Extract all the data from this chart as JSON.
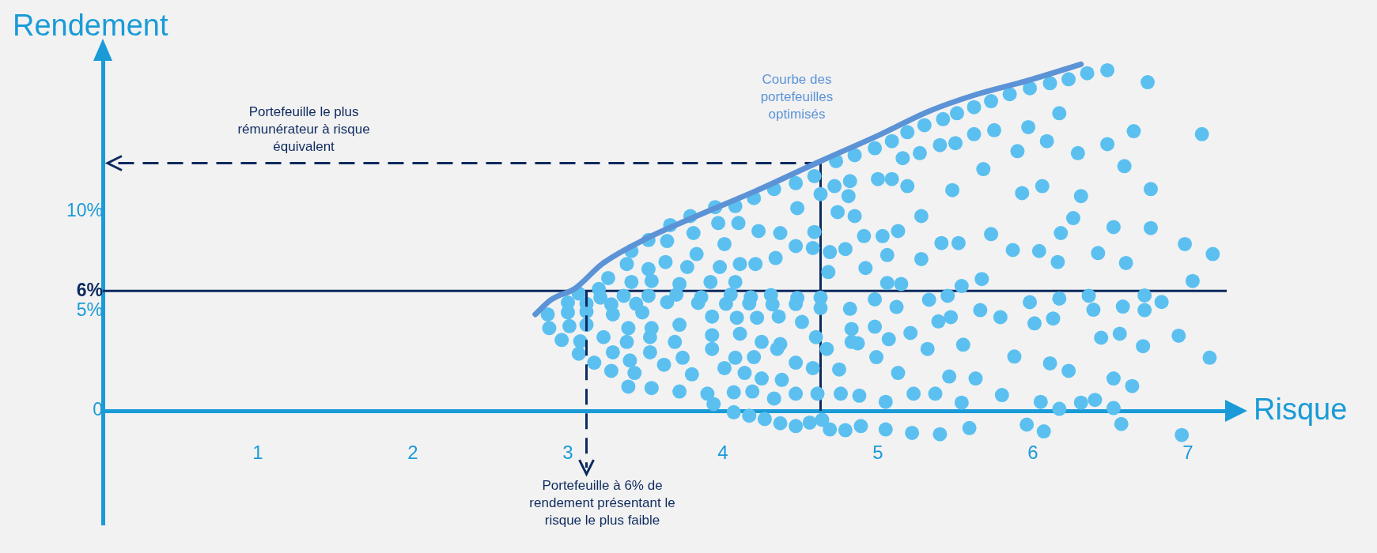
{
  "chart_data": {
    "type": "scatter",
    "xlabel": "Risque",
    "ylabel": "Rendement",
    "xlim": [
      0,
      7.25
    ],
    "ylim": [
      -5.7,
      17.6
    ],
    "xticks": [
      1,
      2,
      3,
      4,
      5,
      6,
      7
    ],
    "yticks": [
      0,
      {
        "value": 5,
        "label": "5%"
      },
      {
        "value": 6,
        "label": "6%"
      },
      {
        "value": 10,
        "label": "10%"
      }
    ],
    "series": [
      {
        "color": "#5bc0f0",
        "x": [
          6.35,
          6.48,
          6.74,
          6.23,
          6.11,
          5.98,
          5.85,
          5.73,
          5.62,
          5.51,
          5.42,
          5.3,
          5.19,
          5.09,
          4.98,
          4.85,
          4.73,
          6.17,
          5.97,
          7.09,
          6.65,
          6.48,
          5.75,
          5.62,
          5.5,
          5.4,
          5.27,
          5.16,
          6.09,
          6.29,
          5.9,
          5.68,
          6.59,
          6.76,
          6.31,
          6.06,
          5.93,
          5.48,
          5.19,
          5.09,
          5.0,
          4.82,
          4.72,
          4.63,
          4.59,
          4.47,
          4.33,
          4.2,
          4.08,
          4.81,
          6.26,
          6.18,
          6.52,
          6.76,
          6.98,
          7.16,
          7.03,
          5.87,
          6.04,
          6.16,
          6.42,
          6.6,
          5.73,
          5.67,
          5.54,
          5.41,
          5.52,
          5.28,
          5.28,
          5.13,
          5.06,
          5.15,
          5.06,
          5.03,
          4.91,
          4.85,
          4.74,
          4.69,
          4.79,
          4.92,
          4.68,
          4.59,
          4.58,
          4.47,
          4.34,
          4.48,
          4.37,
          4.23,
          4.1,
          4.21,
          3.97,
          3.81,
          3.64,
          3.83,
          4.01,
          4.11,
          3.98,
          3.77,
          3.63,
          3.52,
          3.38,
          3.26,
          3.41,
          3.2,
          3.54,
          3.72,
          3.92,
          4.08,
          3.95,
          3.79,
          3.66,
          3.52,
          3.41,
          3.07,
          3.21,
          3.36,
          3.52,
          3.7,
          3.86,
          4.05,
          4.18,
          4.31,
          4.48,
          4.63,
          4.98,
          5.12,
          5.33,
          5.45,
          6.36,
          6.72,
          6.83,
          5.98,
          6.17,
          6.58,
          6.72,
          5.66,
          3.0,
          3.12,
          3.28,
          3.44,
          3.64,
          3.84,
          4.02,
          4.17,
          4.32,
          4.47,
          4.63,
          4.82,
          2.87,
          3.0,
          3.12,
          2.88,
          3.01,
          3.12,
          3.29,
          3.48,
          3.39,
          3.54,
          3.72,
          3.93,
          4.09,
          4.22,
          4.36,
          4.51,
          2.96,
          3.08,
          3.23,
          3.38,
          3.53,
          3.69,
          3.93,
          4.11,
          4.25,
          4.37,
          4.6,
          4.83,
          4.98,
          4.83,
          5.07,
          5.21,
          5.39,
          5.47,
          5.79,
          6.01,
          6.13,
          6.39,
          6.44,
          6.56,
          6.94,
          6.71,
          5.55,
          5.32,
          4.99,
          4.87,
          4.67,
          4.58,
          4.75,
          3.07,
          3.17,
          3.29,
          3.4,
          3.53,
          3.74,
          3.93,
          4.08,
          4.2,
          4.35,
          4.47,
          3.28,
          3.43,
          3.62,
          3.8,
          4.01,
          4.14,
          4.25,
          4.38,
          5.13,
          5.46,
          5.63,
          5.88,
          6.11,
          6.23,
          6.52,
          6.64,
          7.14,
          3.39,
          3.54,
          3.72,
          3.9,
          4.07,
          4.19,
          4.33,
          4.47,
          4.61,
          4.76,
          4.88,
          5.05,
          5.23,
          5.37,
          5.54,
          5.8,
          6.05,
          6.31,
          6.4,
          6.52,
          6.17,
          3.94,
          4.07,
          4.17,
          4.27,
          4.37,
          4.47,
          4.56,
          4.64,
          4.69,
          4.79,
          4.89,
          5.05,
          5.22,
          5.4,
          5.59,
          5.96,
          6.07,
          6.57,
          6.96
        ],
        "values": [
          16.9,
          17.05,
          16.45,
          16.6,
          16.4,
          16.15,
          15.85,
          15.5,
          15.2,
          14.9,
          14.6,
          14.3,
          13.95,
          13.5,
          13.15,
          12.8,
          12.5,
          14.9,
          14.2,
          13.85,
          14.0,
          13.35,
          14.05,
          13.85,
          13.4,
          13.3,
          12.9,
          12.65,
          13.5,
          12.9,
          13.0,
          12.1,
          12.25,
          11.1,
          10.75,
          11.25,
          10.9,
          11.05,
          11.25,
          11.6,
          11.6,
          11.5,
          11.25,
          10.85,
          11.75,
          11.4,
          11.1,
          10.65,
          10.25,
          10.75,
          9.65,
          8.9,
          9.2,
          9.15,
          8.35,
          7.85,
          6.5,
          8.05,
          8.0,
          7.45,
          7.9,
          7.4,
          8.85,
          6.6,
          6.25,
          8.4,
          8.4,
          7.6,
          9.75,
          9.0,
          7.8,
          6.35,
          6.4,
          8.75,
          8.75,
          9.75,
          9.95,
          7.95,
          8.1,
          7.15,
          6.95,
          8.95,
          8.15,
          8.25,
          7.65,
          10.15,
          8.9,
          9.0,
          9.4,
          7.35,
          9.4,
          8.9,
          8.5,
          7.85,
          8.35,
          7.35,
          7.2,
          7.2,
          7.45,
          7.1,
          7.35,
          6.65,
          6.45,
          6.1,
          6.5,
          6.35,
          6.45,
          6.45,
          10.2,
          9.75,
          9.3,
          8.55,
          8.0,
          5.87,
          5.67,
          5.76,
          5.76,
          5.82,
          5.69,
          5.82,
          5.69,
          5.8,
          5.65,
          5.67,
          5.58,
          5.2,
          5.56,
          5.76,
          5.76,
          5.78,
          5.45,
          5.44,
          5.62,
          5.22,
          5.04,
          5.04,
          5.42,
          5.36,
          5.33,
          5.36,
          5.44,
          5.4,
          5.36,
          5.38,
          5.33,
          5.35,
          5.15,
          5.11,
          4.83,
          4.93,
          4.97,
          4.14,
          4.24,
          4.31,
          4.83,
          4.93,
          4.14,
          4.14,
          4.31,
          4.72,
          4.66,
          4.66,
          4.72,
          4.45,
          3.55,
          3.48,
          3.69,
          3.45,
          3.69,
          3.45,
          3.79,
          3.86,
          3.45,
          3.34,
          3.69,
          4.1,
          4.21,
          3.45,
          3.59,
          3.9,
          4.48,
          4.69,
          4.69,
          4.38,
          4.62,
          5.06,
          3.66,
          3.86,
          3.76,
          3.24,
          3.31,
          3.1,
          2.69,
          3.38,
          3.1,
          2.14,
          2.07,
          2.86,
          2.41,
          2.93,
          2.52,
          2.93,
          2.66,
          3.1,
          2.66,
          2.69,
          3.1,
          2.41,
          2.0,
          1.9,
          2.31,
          1.83,
          2.14,
          1.9,
          1.62,
          1.55,
          1.9,
          1.72,
          1.62,
          2.72,
          2.38,
          2.0,
          1.62,
          1.24,
          2.66,
          1.21,
          1.14,
          0.97,
          0.86,
          0.93,
          0.97,
          0.62,
          0.86,
          0.86,
          0.86,
          0.76,
          0.45,
          0.86,
          0.86,
          0.41,
          0.79,
          0.45,
          0.41,
          0.55,
          0.14,
          0.1,
          0.34,
          -0.07,
          -0.24,
          -0.41,
          -0.62,
          -0.76,
          -0.59,
          -0.45,
          -0.93,
          -0.97,
          -0.76,
          -0.93,
          -1.1,
          -1.17,
          -0.86,
          -0.69,
          -1.03,
          -0.66,
          -1.21
        ]
      },
      {
        "type": "line",
        "name": "Courbe des portefeuilles optimisés",
        "color": "#5b93d6",
        "x": [
          2.79,
          2.89,
          3.05,
          3.22,
          3.5,
          3.83,
          4.21,
          4.63,
          5.02,
          5.33,
          5.64,
          5.95,
          6.31
        ],
        "values": [
          4.83,
          5.55,
          6.15,
          7.35,
          8.6,
          9.75,
          11.0,
          12.5,
          13.85,
          15.0,
          15.85,
          16.5,
          17.35
        ]
      }
    ],
    "ref_lines": [
      {
        "axis": "y",
        "value": 6,
        "color": "#0d2a5e"
      },
      {
        "axis": "y",
        "value": 12.4,
        "color": "#0d2a5e",
        "line_style": "dashed"
      },
      {
        "axis": "x",
        "value": 4.63,
        "color": "#0d2a5e"
      }
    ],
    "annotations": [
      "Portefeuille le plus rémunérateur à risque équivalent",
      {
        "text": "Portefeuille à 6% de rendement présentant le risque le plus faible",
        "x": 3.12,
        "y": 6
      }
    ],
    "legend": false
  }
}
